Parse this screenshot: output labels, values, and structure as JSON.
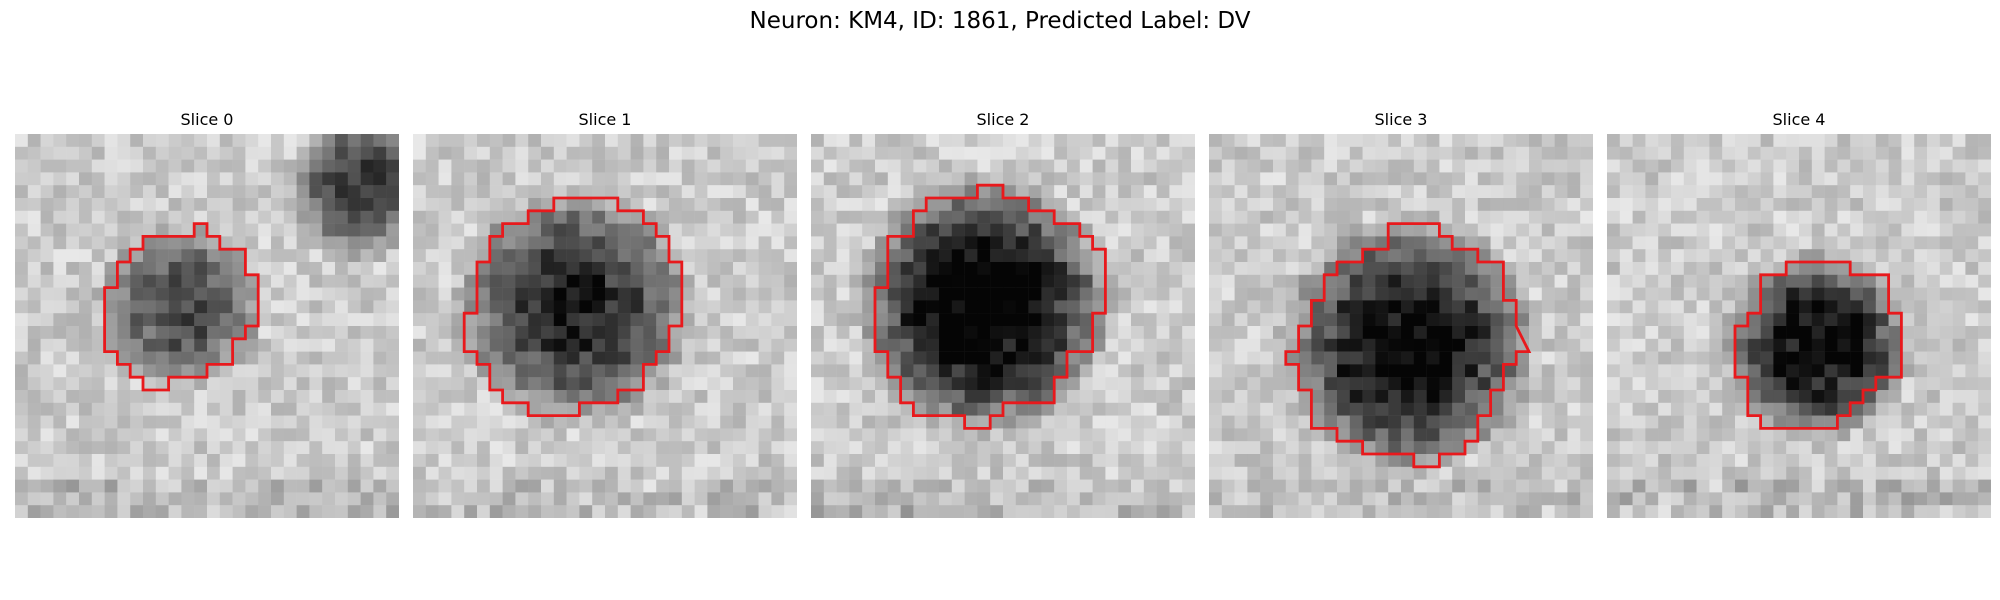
{
  "title": "Neuron: KM4, ID: 1861, Predicted Label: DV",
  "panels": [
    {
      "title": "Slice 0",
      "blob_level": 0.55,
      "blob_cx": 0.43,
      "blob_cy": 0.45,
      "blob_r": 0.2,
      "corner_blob": true
    },
    {
      "title": "Slice 1",
      "blob_level": 0.7,
      "blob_cx": 0.42,
      "blob_cy": 0.45,
      "blob_r": 0.28,
      "corner_blob": false
    },
    {
      "title": "Slice 2",
      "blob_level": 0.92,
      "blob_cx": 0.45,
      "blob_cy": 0.45,
      "blob_r": 0.3,
      "corner_blob": false
    },
    {
      "title": "Slice 3",
      "blob_level": 0.8,
      "blob_cx": 0.52,
      "blob_cy": 0.55,
      "blob_r": 0.3,
      "corner_blob": false
    },
    {
      "title": "Slice 4",
      "blob_level": 0.85,
      "blob_cx": 0.55,
      "blob_cy": 0.55,
      "blob_r": 0.22,
      "corner_blob": false
    }
  ],
  "outline_color": "#e8191c"
}
